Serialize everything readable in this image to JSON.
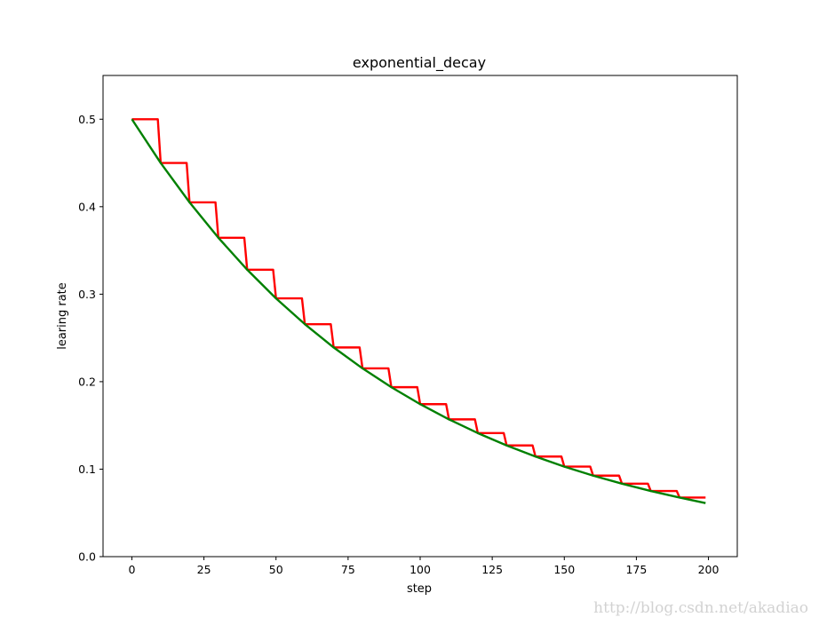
{
  "chart_data": {
    "type": "line",
    "title": "exponential_decay",
    "xlabel": "step",
    "ylabel": "learing rate",
    "xlim": [
      -10,
      210
    ],
    "ylim": [
      0,
      0.55
    ],
    "xticks": [
      0,
      25,
      50,
      75,
      100,
      125,
      150,
      175,
      200
    ],
    "xtick_labels": [
      "0",
      "25",
      "50",
      "75",
      "100",
      "125",
      "150",
      "175",
      "200"
    ],
    "yticks": [
      0.0,
      0.1,
      0.2,
      0.3,
      0.4,
      0.5
    ],
    "ytick_labels": [
      "0.0",
      "0.1",
      "0.2",
      "0.3",
      "0.4",
      "0.5"
    ],
    "grid": false,
    "legend": "none",
    "series": [
      {
        "color": "#ff0000",
        "style": "staircase",
        "x": [
          0,
          9,
          10,
          19,
          20,
          29,
          30,
          39,
          40,
          49,
          50,
          59,
          60,
          69,
          70,
          79,
          80,
          89,
          90,
          99,
          100,
          109,
          110,
          119,
          120,
          129,
          130,
          139,
          140,
          149,
          150,
          159,
          160,
          169,
          170,
          179,
          180,
          189,
          190,
          199
        ],
        "y": [
          0.5,
          0.5,
          0.45,
          0.45,
          0.405,
          0.405,
          0.3645,
          0.3645,
          0.328,
          0.328,
          0.2952,
          0.2952,
          0.2657,
          0.2657,
          0.2391,
          0.2391,
          0.2152,
          0.2152,
          0.1937,
          0.1937,
          0.1743,
          0.1743,
          0.1569,
          0.1569,
          0.1412,
          0.1412,
          0.1271,
          0.1271,
          0.1144,
          0.1144,
          0.1029,
          0.1029,
          0.0926,
          0.0926,
          0.0834,
          0.0834,
          0.075,
          0.075,
          0.0675,
          0.0675
        ]
      },
      {
        "color": "#008000",
        "style": "smooth",
        "x": [
          0,
          10,
          20,
          30,
          40,
          50,
          60,
          70,
          80,
          90,
          100,
          110,
          120,
          130,
          140,
          150,
          160,
          170,
          180,
          190,
          199
        ],
        "y": [
          0.5,
          0.45,
          0.405,
          0.3645,
          0.328,
          0.2952,
          0.2657,
          0.2391,
          0.2152,
          0.1937,
          0.1743,
          0.1569,
          0.1412,
          0.1271,
          0.1144,
          0.1029,
          0.0926,
          0.0834,
          0.075,
          0.0675,
          0.0612
        ]
      }
    ]
  },
  "watermark": "http://blog.csdn.net/akadiao"
}
